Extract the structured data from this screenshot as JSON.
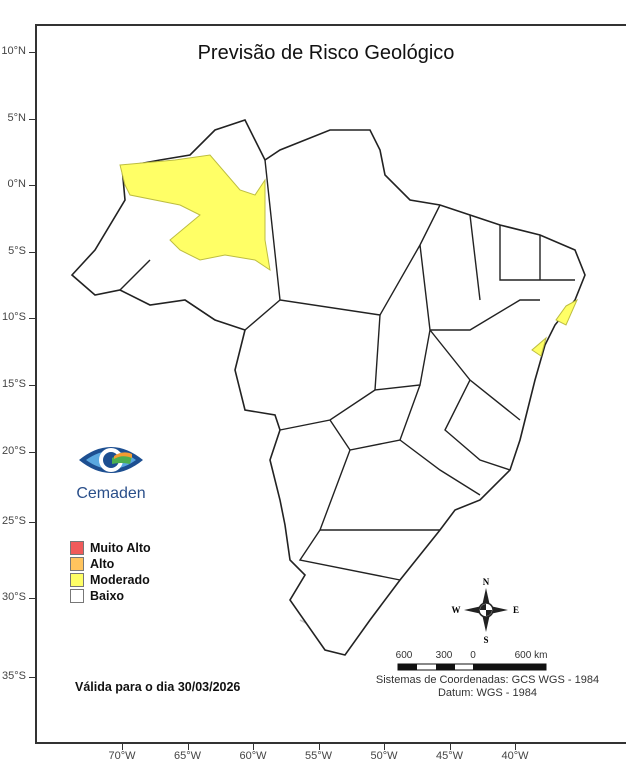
{
  "title": "Previsão de Risco Geológico",
  "axes": {
    "lat_labels": [
      "10°N",
      "5°N",
      "0°N",
      "5°S",
      "10°S",
      "15°S",
      "20°S",
      "25°S",
      "30°S",
      "35°S"
    ],
    "lon_labels": [
      "70°W",
      "65°W",
      "60°W",
      "55°W",
      "50°W",
      "45°W",
      "40°W"
    ]
  },
  "legend": [
    {
      "label": "Muito Alto",
      "color": "#f05a5a"
    },
    {
      "label": "Alto",
      "color": "#ffc45e"
    },
    {
      "label": "Moderado",
      "color": "#ffff66"
    },
    {
      "label": "Baixo",
      "color": "#ffffff"
    }
  ],
  "valid_text": "Válida para o dia 30/03/2026",
  "compass": {
    "n": "N",
    "s": "S",
    "e": "E",
    "w": "W"
  },
  "scale": {
    "labels": [
      "600",
      "300",
      "0",
      "600 km"
    ]
  },
  "coord_system": "Sistemas de Coordenadas: GCS WGS - 1984",
  "datum": "Datum: WGS - 1984",
  "logo": {
    "text": "Cemaden"
  },
  "highlighted_regions": [
    {
      "region": "Amazonas",
      "level": "Moderado"
    },
    {
      "region": "Alagoas coast",
      "level": "Moderado"
    },
    {
      "region": "Sergipe/Bahia coast",
      "level": "Moderado"
    }
  ]
}
